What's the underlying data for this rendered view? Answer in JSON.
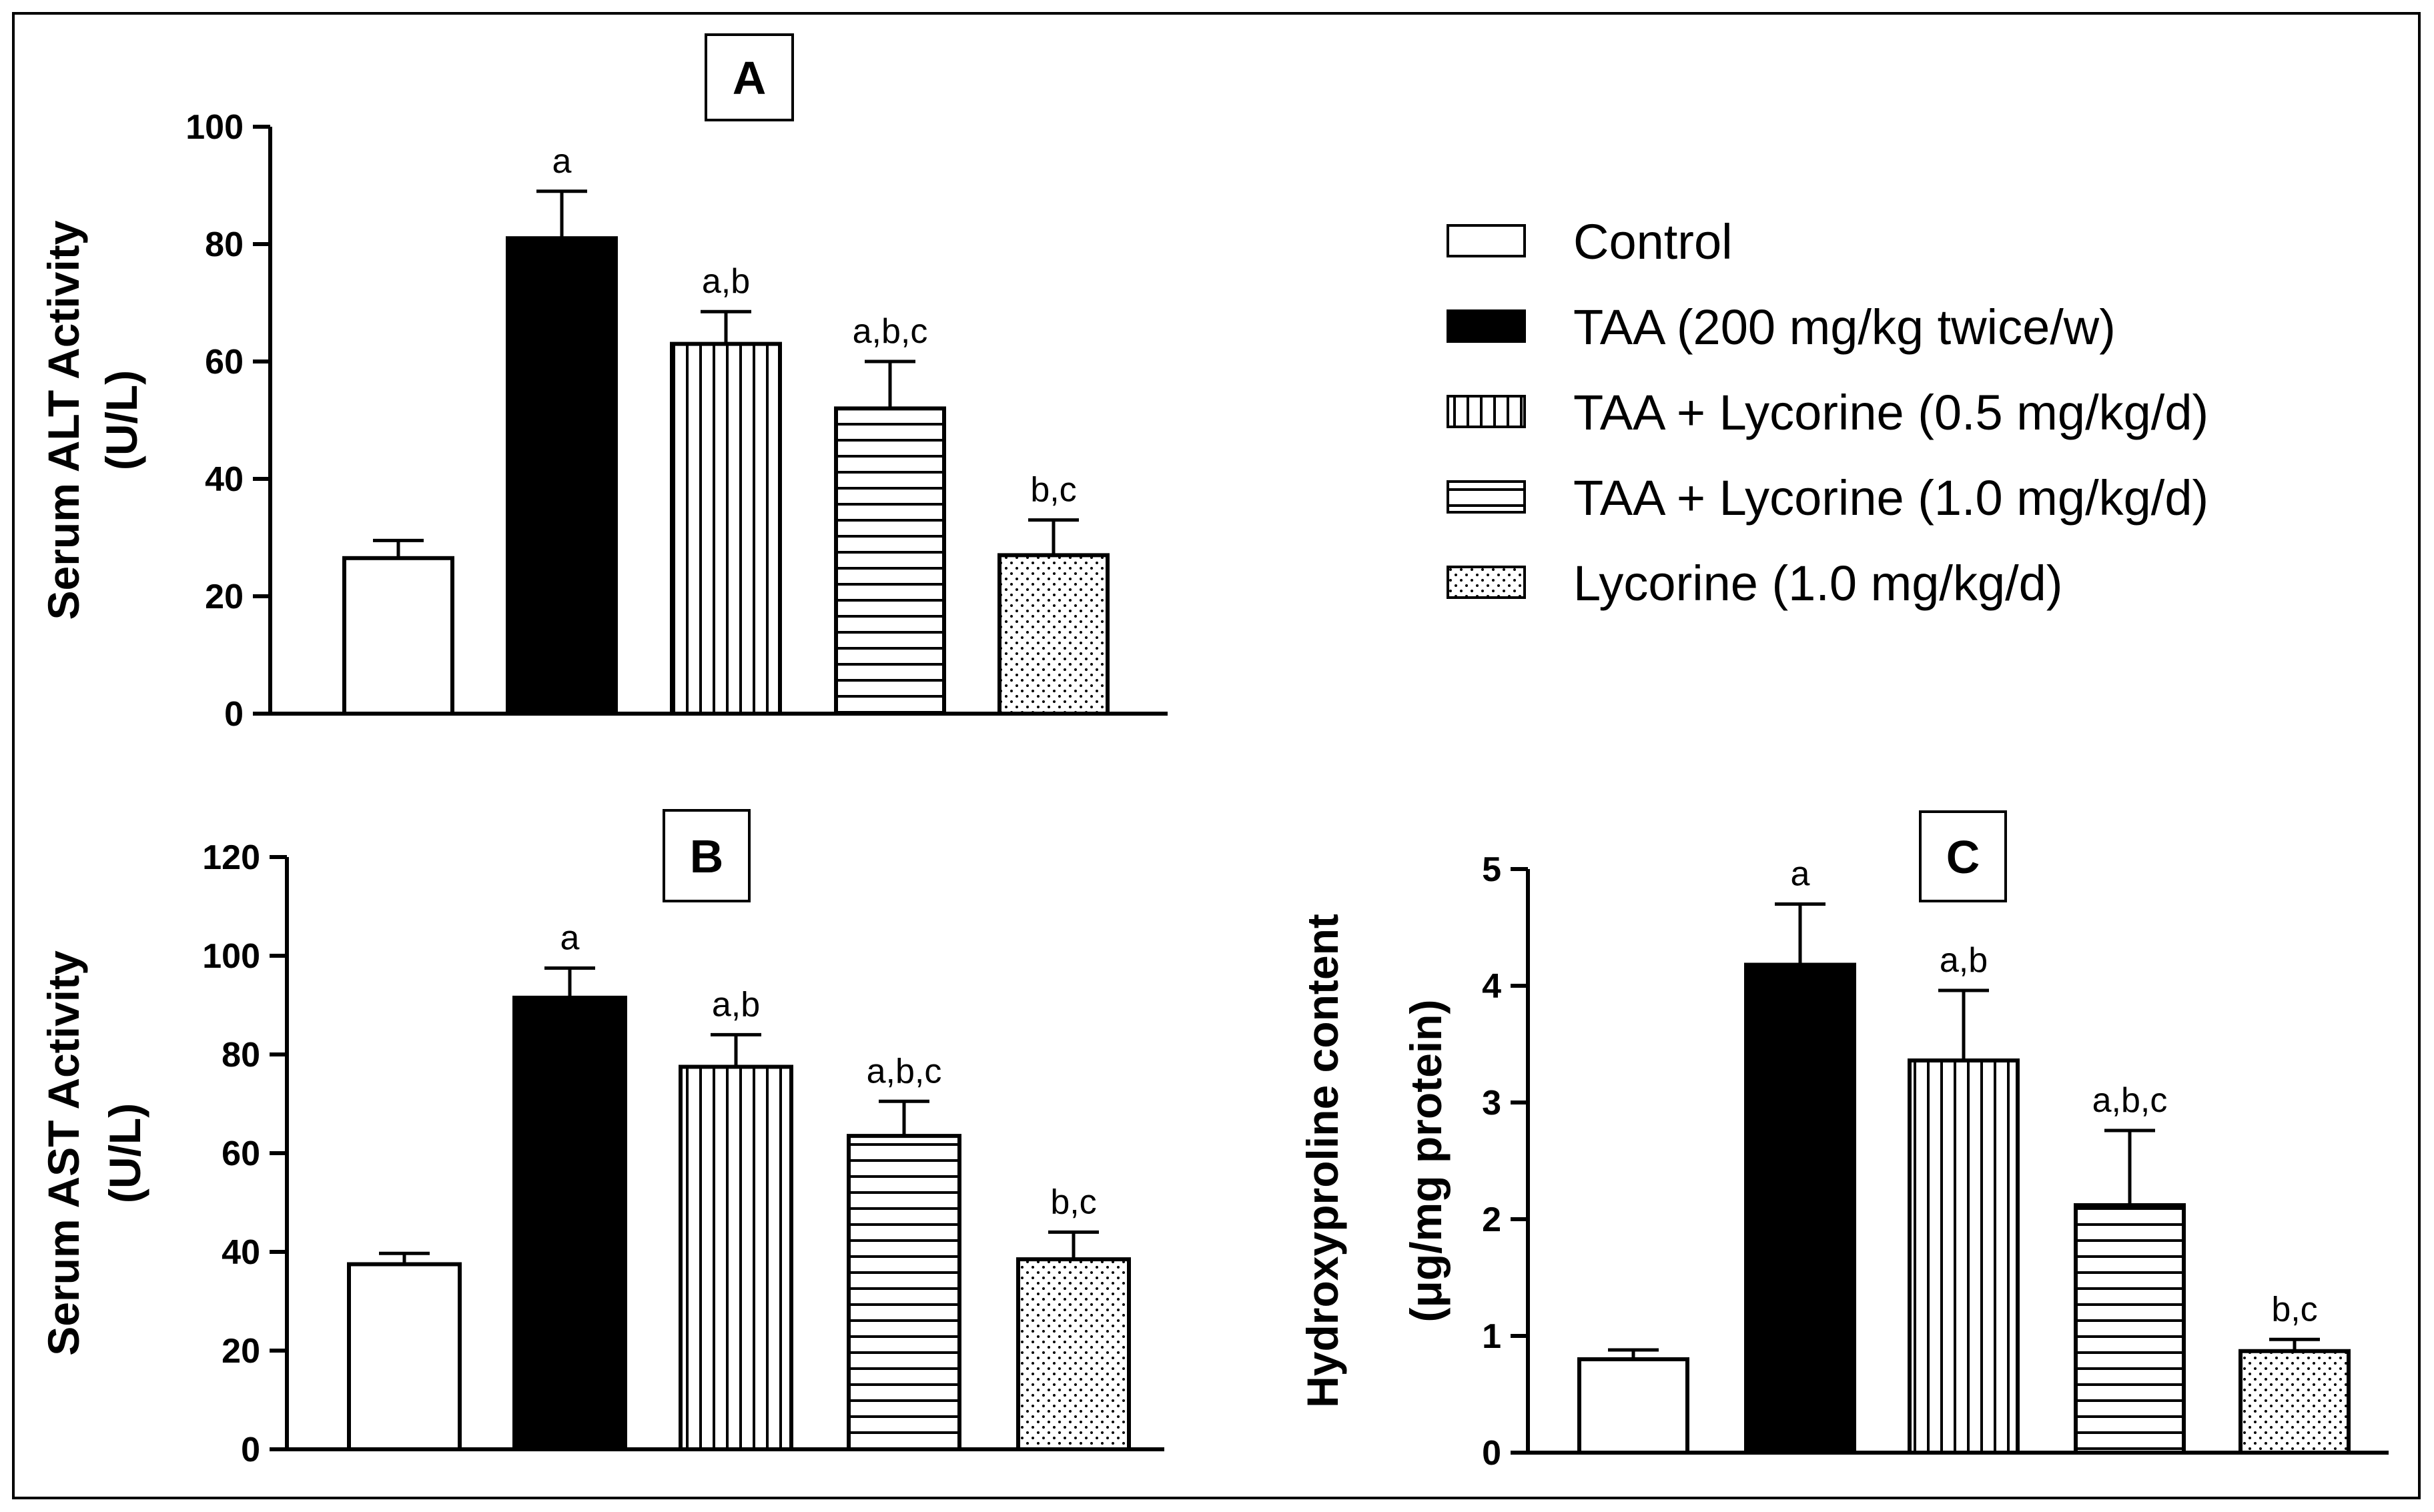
{
  "legend": {
    "entries": [
      {
        "label": "Control",
        "fill": "white"
      },
      {
        "label": "TAA (200 mg/kg twice/w)",
        "fill": "black"
      },
      {
        "label": "TAA + Lycorine (0.5 mg/kg/d)",
        "fill": "vertical"
      },
      {
        "label": "TAA + Lycorine (1.0 mg/kg/d)",
        "fill": "horizontal"
      },
      {
        "label": "Lycorine (1.0 mg/kg/d)",
        "fill": "dots"
      }
    ]
  },
  "chart_data": [
    {
      "type": "bar",
      "panel": "A",
      "ylabel_line1": "Serum ALT Activity",
      "ylabel_line2": "(U/L)",
      "ylim": [
        0,
        100
      ],
      "yticks": [
        0,
        20,
        40,
        60,
        80,
        100
      ],
      "categories": [
        "Control",
        "TAA (200 mg/kg twice/w)",
        "TAA + Lycorine (0.5 mg/kg/d)",
        "TAA + Lycorine (1.0 mg/kg/d)",
        "Lycorine (1.0 mg/kg/d)"
      ],
      "values": [
        26.5,
        81,
        63,
        52,
        27
      ],
      "errors": [
        3,
        8,
        5.5,
        8,
        6
      ],
      "significance": [
        "",
        "a",
        "a,b",
        "a,b,c",
        "b,c"
      ]
    },
    {
      "type": "bar",
      "panel": "B",
      "ylabel_line1": "Serum AST Activity",
      "ylabel_line2": "(U/L)",
      "ylim": [
        0,
        120
      ],
      "yticks": [
        0,
        20,
        40,
        60,
        80,
        100,
        120
      ],
      "categories": [
        "Control",
        "TAA (200 mg/kg twice/w)",
        "TAA + Lycorine (0.5 mg/kg/d)",
        "TAA + Lycorine (1.0 mg/kg/d)",
        "Lycorine (1.0 mg/kg/d)"
      ],
      "values": [
        37.5,
        91.5,
        77.5,
        63.5,
        38.5
      ],
      "errors": [
        2.2,
        6,
        6.5,
        7,
        5.5
      ],
      "significance": [
        "",
        "a",
        "a,b",
        "a,b,c",
        "b,c"
      ]
    },
    {
      "type": "bar",
      "panel": "C",
      "ylabel_line1": "Hydroxyproline content",
      "ylabel_line2": "(μg/mg protein)",
      "ylim": [
        0,
        5
      ],
      "yticks": [
        0,
        1,
        2,
        3,
        4,
        5
      ],
      "categories": [
        "Control",
        "TAA (200 mg/kg twice/w)",
        "TAA + Lycorine (0.5 mg/kg/d)",
        "TAA + Lycorine (1.0 mg/kg/d)",
        "Lycorine (1.0 mg/kg/d)"
      ],
      "values": [
        0.8,
        4.18,
        3.36,
        2.12,
        0.87
      ],
      "errors": [
        0.08,
        0.52,
        0.6,
        0.64,
        0.1
      ],
      "significance": [
        "",
        "a",
        "a,b",
        "a,b,c",
        "b,c"
      ]
    }
  ]
}
